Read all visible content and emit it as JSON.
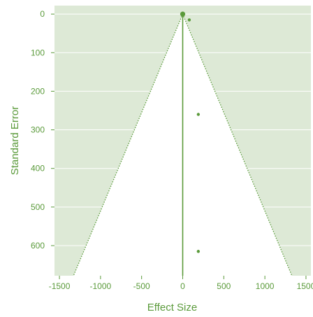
{
  "chart_data": {
    "type": "scatter",
    "subtype": "funnel-plot",
    "title": "",
    "xlabel": "Effect Size",
    "ylabel": "Standard Error",
    "xlim": [
      -1560,
      1560
    ],
    "ylim": [
      -22,
      678
    ],
    "y_inverted": true,
    "x_ticks": [
      -1500,
      -1000,
      -500,
      0,
      500,
      1000,
      1500
    ],
    "x_tick_labels": [
      "-1500",
      "-1000",
      "-500",
      "0",
      "500",
      "1000",
      "1500"
    ],
    "y_ticks": [
      0,
      100,
      200,
      300,
      400,
      500,
      600
    ],
    "y_tick_labels": [
      "0",
      "100",
      "200",
      "300",
      "400",
      "500",
      "600"
    ],
    "grid": "horizontal",
    "legend": "none",
    "summary_effect": 0,
    "funnel_slope": 1.96,
    "points": [
      {
        "x": 0,
        "y": 0,
        "size": "large"
      },
      {
        "x": 80,
        "y": 15,
        "size": "small"
      },
      {
        "x": 190,
        "y": 260,
        "size": "small"
      },
      {
        "x": 190,
        "y": 615,
        "size": "small"
      }
    ],
    "colors": {
      "region": "#dde9d6",
      "funnel": "#ffffff",
      "accent": "#5a9a3a",
      "grid": "#ffffff"
    }
  }
}
